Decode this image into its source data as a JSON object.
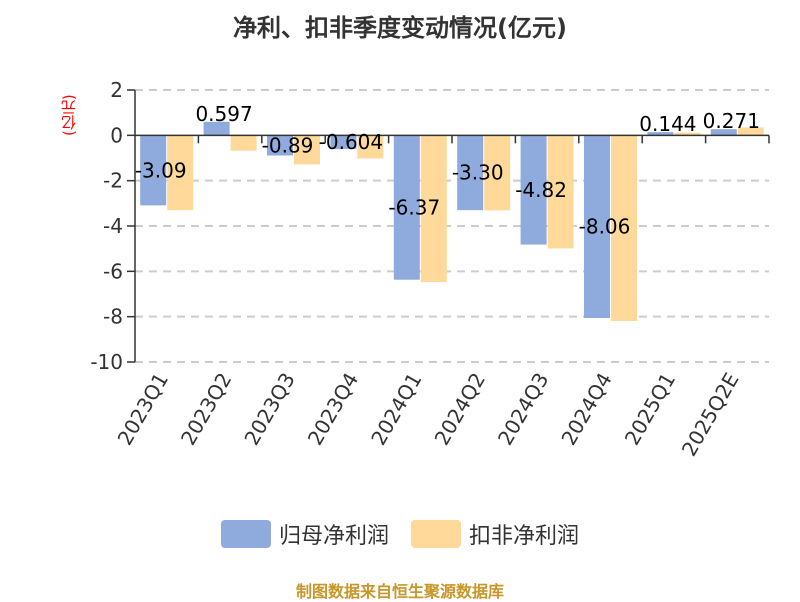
{
  "title": "净利、扣非季度变动情况(亿元)",
  "unit_label": "(亿元)",
  "legend": [
    {
      "label": "归母净利润",
      "color": "#8FAADC"
    },
    {
      "label": "扣非净利润",
      "color": "#FFD99A"
    }
  ],
  "footer": "制图数据来自恒生聚源数据库",
  "chart_data": {
    "type": "bar",
    "title": "净利、扣非季度变动情况(亿元)",
    "xlabel": "",
    "ylabel": "(亿元)",
    "ylim": [
      -10,
      2
    ],
    "yticks": [
      2,
      0,
      -2,
      -4,
      -6,
      -8,
      -10
    ],
    "grid": true,
    "legend_position": "bottom",
    "categories": [
      "2023Q1",
      "2023Q2",
      "2023Q3",
      "2023Q4",
      "2024Q1",
      "2024Q2",
      "2024Q3",
      "2024Q4",
      "2025Q1",
      "2025Q2E"
    ],
    "series": [
      {
        "name": "归母净利润",
        "color": "#8FAADC",
        "values": [
          -3.09,
          0.597,
          -0.89,
          -0.604,
          -6.37,
          -3.3,
          -4.82,
          -8.06,
          0.144,
          0.271
        ],
        "labels": [
          "-3.09",
          "0.597",
          "-0.89",
          "-0.604",
          "-6.37",
          "-3.30",
          "-4.82",
          "-8.06",
          "0.144",
          "0.271"
        ]
      },
      {
        "name": "扣非净利润",
        "color": "#FFD99A",
        "values": [
          -3.3,
          -0.68,
          -1.28,
          -1.02,
          -6.47,
          -3.31,
          -4.99,
          -8.19,
          0.12,
          0.35
        ]
      }
    ]
  }
}
